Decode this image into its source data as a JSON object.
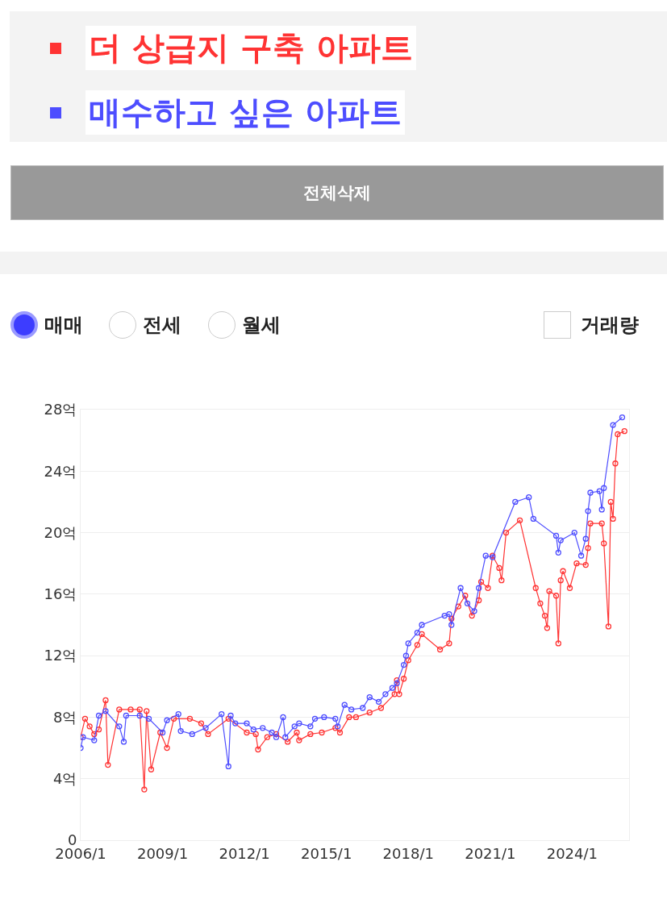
{
  "chart_data": {
    "type": "line",
    "annotations": [
      "전체삭제",
      "매매",
      "전세",
      "월세",
      "거래량"
    ],
    "legend": "top",
    "grid": "y",
    "marker": "circle",
    "line_style": "solid",
    "xlim": [
      "2006-01",
      "2026-02"
    ],
    "xticks": [
      {
        "value": "2006-01",
        "label": "2006/1"
      },
      {
        "value": "2009-01",
        "label": "2009/1"
      },
      {
        "value": "2012-01",
        "label": "2012/1"
      },
      {
        "value": "2015-01",
        "label": "2015/1"
      },
      {
        "value": "2018-01",
        "label": "2018/1"
      },
      {
        "value": "2021-01",
        "label": "2021/1"
      },
      {
        "value": "2024-01",
        "label": "2024/1"
      }
    ],
    "ylim": [
      0,
      28
    ],
    "yticks": [
      {
        "value": 0,
        "label": "0"
      },
      {
        "value": 4,
        "label": "4억"
      },
      {
        "value": 8,
        "label": "8억"
      },
      {
        "value": 12,
        "label": "12억"
      },
      {
        "value": 16,
        "label": "16억"
      },
      {
        "value": 20,
        "label": "20억"
      },
      {
        "value": 24,
        "label": "24억"
      },
      {
        "value": 28,
        "label": "28억"
      }
    ],
    "series": [
      {
        "name": "더 상급지 구축 아파트",
        "color": "#ff3333",
        "x": [
          "2006-01",
          "2006-03",
          "2006-05",
          "2006-07",
          "2006-09",
          "2006-12",
          "2007-01",
          "2007-06",
          "2007-11",
          "2008-03",
          "2008-05",
          "2008-06",
          "2008-08",
          "2008-12",
          "2009-03",
          "2009-06",
          "2010-01",
          "2010-06",
          "2010-09",
          "2011-06",
          "2012-02",
          "2012-06",
          "2012-07",
          "2012-11",
          "2013-03",
          "2013-08",
          "2013-12",
          "2014-01",
          "2014-06",
          "2014-11",
          "2015-05",
          "2015-07",
          "2015-11",
          "2016-02",
          "2016-08",
          "2017-01",
          "2017-07",
          "2017-08",
          "2017-09",
          "2017-11",
          "2018-01",
          "2018-05",
          "2018-07",
          "2019-03",
          "2019-07",
          "2019-08",
          "2019-11",
          "2020-02",
          "2020-05",
          "2020-08",
          "2020-09",
          "2020-12",
          "2021-02",
          "2021-05",
          "2021-06",
          "2021-08",
          "2022-02",
          "2022-09",
          "2022-11",
          "2023-01",
          "2023-02",
          "2023-03",
          "2023-06",
          "2023-07",
          "2023-08",
          "2023-09",
          "2023-12",
          "2024-03",
          "2024-07",
          "2024-08",
          "2024-09",
          "2025-02",
          "2025-03",
          "2025-05",
          "2025-06",
          "2025-07",
          "2025-08",
          "2025-09",
          "2025-12"
        ],
        "values": [
          6.7,
          7.9,
          7.4,
          6.9,
          7.2,
          9.1,
          4.9,
          8.5,
          8.5,
          8.5,
          3.3,
          8.4,
          4.6,
          7.0,
          6.0,
          7.9,
          7.9,
          7.6,
          6.9,
          7.9,
          7.0,
          6.9,
          5.9,
          6.7,
          6.9,
          6.4,
          7.0,
          6.5,
          6.9,
          7.0,
          7.3,
          7.0,
          8.0,
          8.0,
          8.3,
          8.6,
          9.5,
          10.4,
          9.5,
          10.5,
          11.7,
          12.7,
          13.4,
          12.4,
          12.8,
          14.4,
          15.2,
          15.9,
          14.6,
          15.6,
          16.8,
          16.4,
          18.5,
          17.7,
          16.9,
          20.0,
          20.8,
          16.4,
          15.4,
          14.6,
          13.8,
          16.2,
          15.9,
          12.8,
          16.9,
          17.5,
          16.4,
          18.0,
          17.9,
          19.0,
          20.6,
          20.6,
          19.3,
          13.9,
          22.0,
          20.9,
          24.5,
          26.4,
          26.6
        ]
      },
      {
        "name": "매수하고 싶은 아파트",
        "color": "#4d4dff",
        "x": [
          "2006-01",
          "2006-02",
          "2006-07",
          "2006-09",
          "2006-12",
          "2007-06",
          "2007-08",
          "2007-09",
          "2008-03",
          "2008-07",
          "2009-01",
          "2009-03",
          "2009-08",
          "2009-09",
          "2010-02",
          "2010-08",
          "2011-03",
          "2011-06",
          "2011-07",
          "2011-09",
          "2012-02",
          "2012-05",
          "2012-09",
          "2013-01",
          "2013-03",
          "2013-06",
          "2013-07",
          "2013-11",
          "2014-01",
          "2014-06",
          "2014-08",
          "2014-12",
          "2015-05",
          "2015-06",
          "2015-09",
          "2015-12",
          "2016-05",
          "2016-08",
          "2016-12",
          "2017-03",
          "2017-06",
          "2017-08",
          "2017-11",
          "2017-12",
          "2018-01",
          "2018-05",
          "2018-07",
          "2019-05",
          "2019-07",
          "2019-08",
          "2019-12",
          "2020-03",
          "2020-06",
          "2020-08",
          "2020-11",
          "2021-02",
          "2021-12",
          "2022-06",
          "2022-08",
          "2023-06",
          "2023-07",
          "2023-08",
          "2024-02",
          "2024-05",
          "2024-07",
          "2024-08",
          "2024-09",
          "2025-01",
          "2025-02",
          "2025-03",
          "2025-07",
          "2025-11"
        ],
        "values": [
          6.0,
          6.7,
          6.5,
          8.1,
          8.4,
          7.4,
          6.4,
          8.1,
          8.1,
          7.9,
          7.0,
          7.8,
          8.2,
          7.1,
          6.9,
          7.3,
          8.2,
          4.8,
          8.1,
          7.6,
          7.6,
          7.2,
          7.3,
          7.0,
          6.7,
          8.0,
          6.7,
          7.4,
          7.6,
          7.4,
          7.9,
          8.0,
          7.9,
          7.4,
          8.8,
          8.5,
          8.6,
          9.3,
          9.0,
          9.5,
          9.9,
          10.2,
          11.4,
          12.0,
          12.8,
          13.5,
          14.0,
          14.6,
          14.7,
          14.0,
          16.4,
          15.4,
          14.9,
          16.4,
          18.5,
          18.4,
          22.0,
          22.3,
          20.9,
          19.8,
          18.7,
          19.5,
          20.0,
          18.5,
          19.6,
          21.4,
          22.6,
          22.7,
          21.5,
          22.9,
          27.0,
          27.5
        ]
      }
    ]
  }
}
